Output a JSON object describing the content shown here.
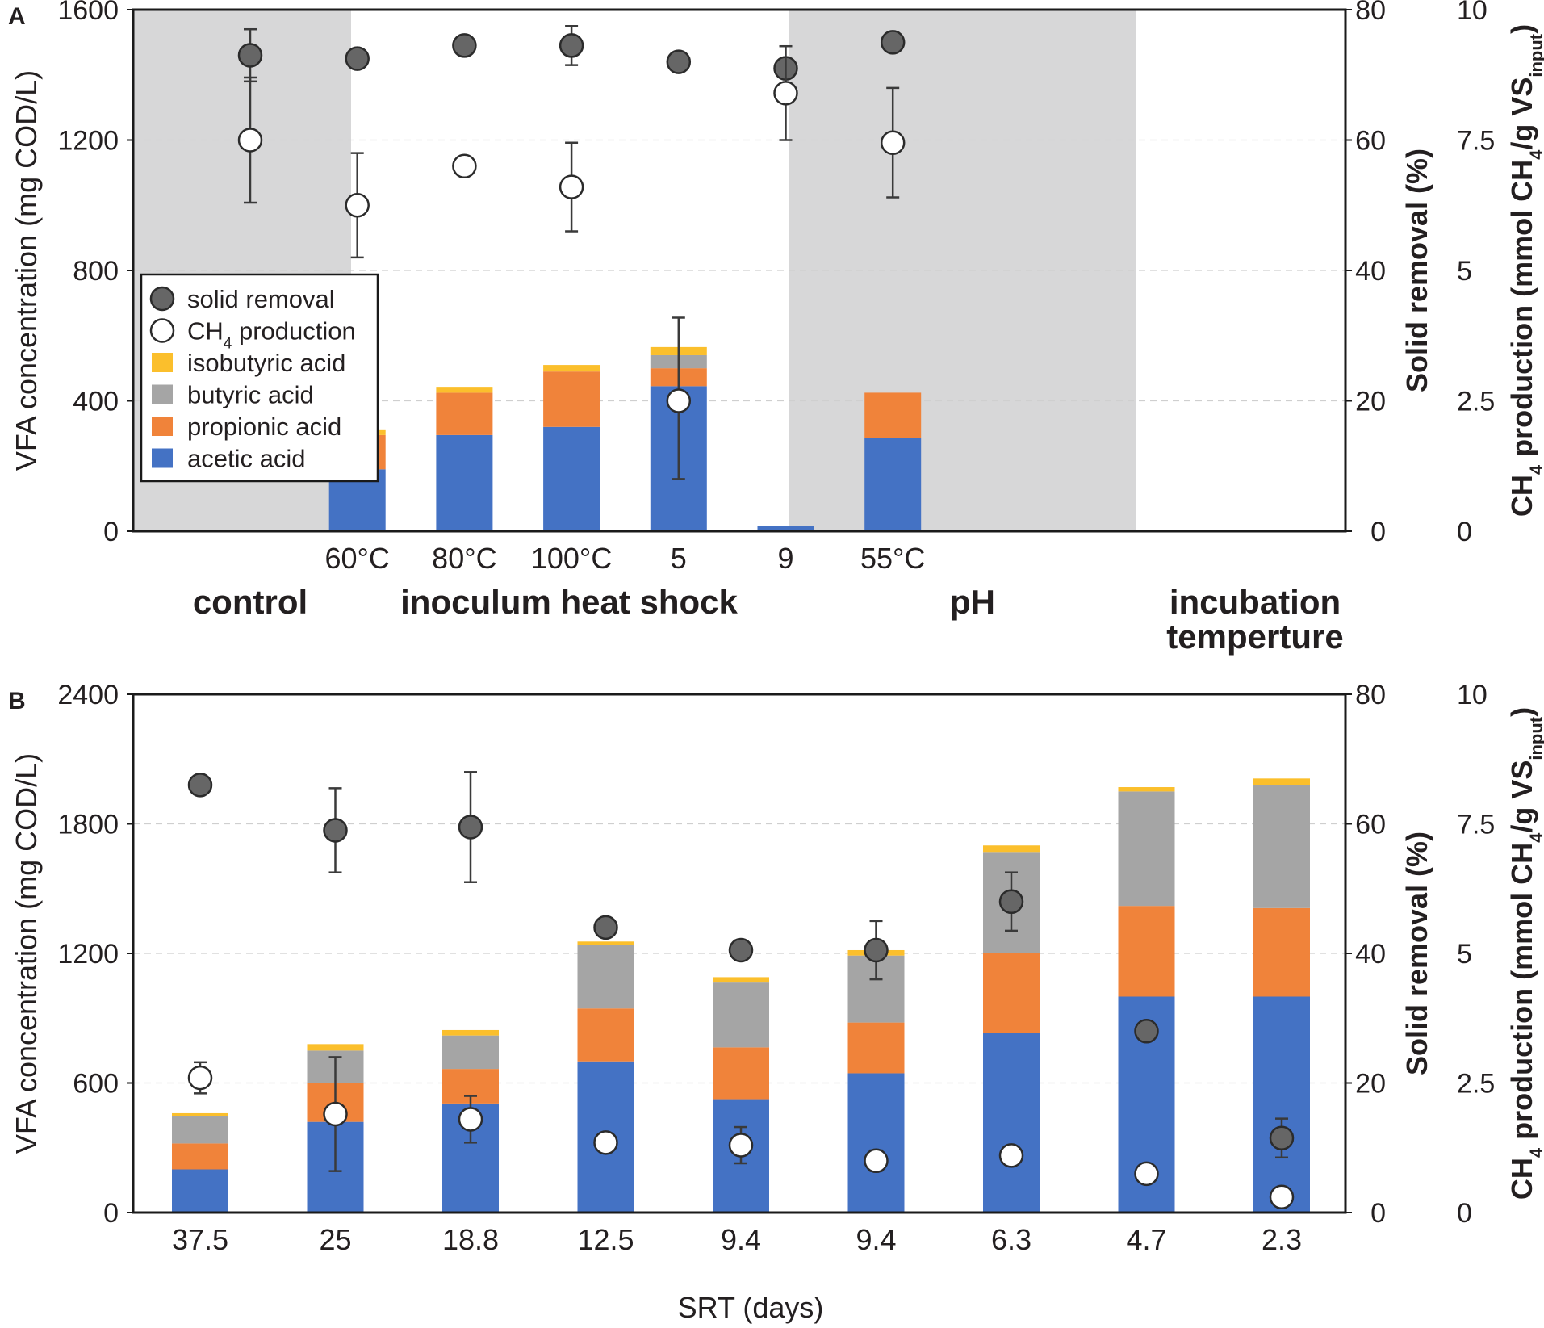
{
  "colors": {
    "acetic": "#4472c4",
    "propionic": "#f0833a",
    "butyric": "#a5a5a5",
    "isobutyric": "#fbbf2c",
    "solid_marker": "#666666",
    "ch4_marker": "#ffffff",
    "shade": "#d7d7d8"
  },
  "legend": {
    "solid_removal": "solid removal",
    "ch4_main": "CH",
    "ch4_sub": "4",
    "ch4_rest": " production",
    "isobutyric": "isobutyric acid",
    "butyric": "butyric acid",
    "propionic": "propionic acid",
    "acetic": "acetic acid"
  },
  "axis_titles": {
    "vfa": "VFA concentration (mg COD/L)",
    "solid": "Solid removal (%)",
    "ch4_parts": [
      "CH",
      "4",
      " production (mmol CH",
      "4",
      "/g VS",
      "input",
      ")"
    ]
  },
  "chart_data": [
    {
      "panel_label": "A",
      "type": "bar",
      "stacked": true,
      "left_axis": {
        "label": "VFA concentration (mg COD/L)",
        "ylim": [
          0,
          1600
        ],
        "ticks": [
          "0",
          "400",
          "800",
          "1200",
          "1600"
        ]
      },
      "right_axis_1": {
        "label": "Solid removal (%)",
        "ylim": [
          0,
          80
        ],
        "ticks": [
          "0",
          "20",
          "40",
          "60",
          "80"
        ]
      },
      "right_axis_2": {
        "label": "CH4 production (mmol CH4/g VSinput)",
        "ylim": [
          0,
          10
        ],
        "ticks": [
          "0",
          "2.5",
          "5",
          "7.5",
          "10"
        ]
      },
      "groups": [
        {
          "label": "control",
          "shaded": true
        },
        {
          "label": "inoculum heat shock",
          "shaded": false
        },
        {
          "label": "pH",
          "shaded": true
        },
        {
          "label": [
            "incubation",
            "temperture"
          ],
          "shaded": false
        }
      ],
      "categories": [
        "",
        "60°C",
        "80°C",
        "100°C",
        "5",
        "9",
        "55°C"
      ],
      "series": [
        {
          "name": "acetic acid",
          "values": [
            0,
            190,
            295,
            320,
            445,
            15,
            285
          ]
        },
        {
          "name": "propionic acid",
          "values": [
            0,
            105,
            130,
            170,
            55,
            0,
            140
          ]
        },
        {
          "name": "butyric acid",
          "values": [
            0,
            0,
            0,
            0,
            40,
            0,
            0
          ]
        },
        {
          "name": "isobutyric acid",
          "values": [
            0,
            15,
            18,
            20,
            25,
            0,
            0
          ]
        }
      ],
      "vfa_error": [
        null,
        null,
        null,
        null,
        [
          160,
          655
        ],
        null,
        null
      ],
      "solid_removal": {
        "values": [
          73,
          72.5,
          74.5,
          74.5,
          72,
          71,
          75
        ],
        "error": [
          4,
          0,
          0,
          3,
          0,
          0,
          0
        ]
      },
      "ch4_production": {
        "values": [
          7.5,
          6.25,
          7.0,
          6.6,
          2.5,
          8.4,
          7.45
        ],
        "error": [
          1.2,
          1.0,
          0,
          0.85,
          0,
          0.9,
          1.05
        ]
      }
    },
    {
      "panel_label": "B",
      "type": "bar",
      "stacked": true,
      "xlabel": "SRT (days)",
      "left_axis": {
        "label": "VFA concentration (mg COD/L)",
        "ylim": [
          0,
          2400
        ],
        "ticks": [
          "0",
          "600",
          "1200",
          "1800",
          "2400"
        ]
      },
      "right_axis_1": {
        "label": "Solid removal (%)",
        "ylim": [
          0,
          80
        ],
        "ticks": [
          "0",
          "20",
          "40",
          "60",
          "80"
        ]
      },
      "right_axis_2": {
        "label": "CH4 production (mmol CH4/g VSinput)",
        "ylim": [
          0,
          10
        ],
        "ticks": [
          "0",
          "2.5",
          "5",
          "7.5",
          "10"
        ]
      },
      "categories": [
        "37.5",
        "25",
        "18.8",
        "12.5",
        "9.4",
        "9.4",
        "6.3",
        "4.7",
        "2.3"
      ],
      "series": [
        {
          "name": "acetic acid",
          "values": [
            200,
            420,
            505,
            700,
            525,
            645,
            830,
            1000,
            1000
          ]
        },
        {
          "name": "propionic acid",
          "values": [
            120,
            180,
            160,
            245,
            240,
            235,
            370,
            420,
            410
          ]
        },
        {
          "name": "butyric acid",
          "values": [
            125,
            150,
            155,
            295,
            300,
            310,
            470,
            530,
            570
          ]
        },
        {
          "name": "isobutyric acid",
          "values": [
            15,
            30,
            25,
            15,
            25,
            25,
            30,
            20,
            30
          ]
        }
      ],
      "solid_removal": {
        "values": [
          66,
          59,
          59.5,
          44,
          40.5,
          40.5,
          48,
          28,
          11.5
        ],
        "error": [
          0,
          6.5,
          8.5,
          0,
          1.5,
          4.5,
          4.5,
          0,
          3
        ]
      },
      "ch4_production": {
        "values": [
          2.6,
          1.9,
          1.8,
          1.35,
          1.3,
          1.0,
          1.1,
          0.75,
          0.3
        ],
        "error": [
          0.3,
          1.1,
          0.45,
          0,
          0.35,
          0.2,
          0,
          0,
          0
        ]
      }
    }
  ],
  "x_title": "SRT (days)"
}
